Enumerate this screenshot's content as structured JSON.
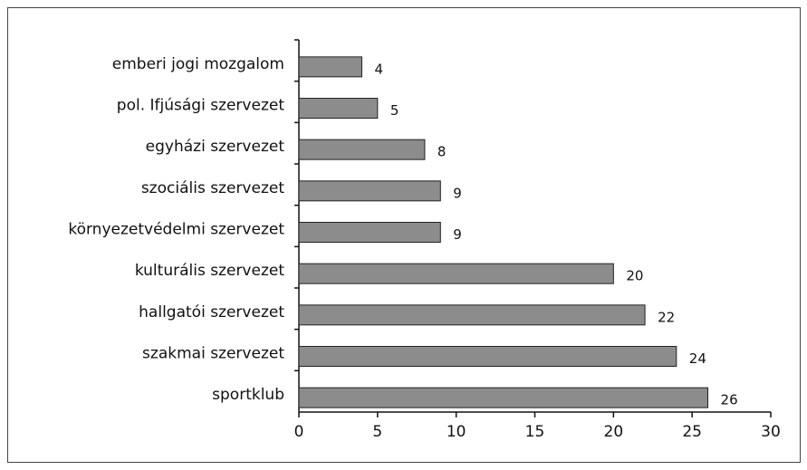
{
  "chart_data": {
    "type": "bar",
    "orientation": "horizontal",
    "categories": [
      "emberi jogi mozgalom",
      "pol. Ifjúsági szervezet",
      "egyházi szervezet",
      "szociális szervezet",
      "környezetvédelmi szervezet",
      "kulturális szervezet",
      "hallgatói szervezet",
      "szakmai szervezet",
      "sportklub"
    ],
    "values": [
      4,
      5,
      8,
      9,
      9,
      20,
      22,
      24,
      26
    ],
    "color": "#8c8c8c",
    "xlim": [
      0,
      30
    ],
    "xticks": [
      0,
      5,
      10,
      15,
      20,
      25,
      30
    ]
  }
}
